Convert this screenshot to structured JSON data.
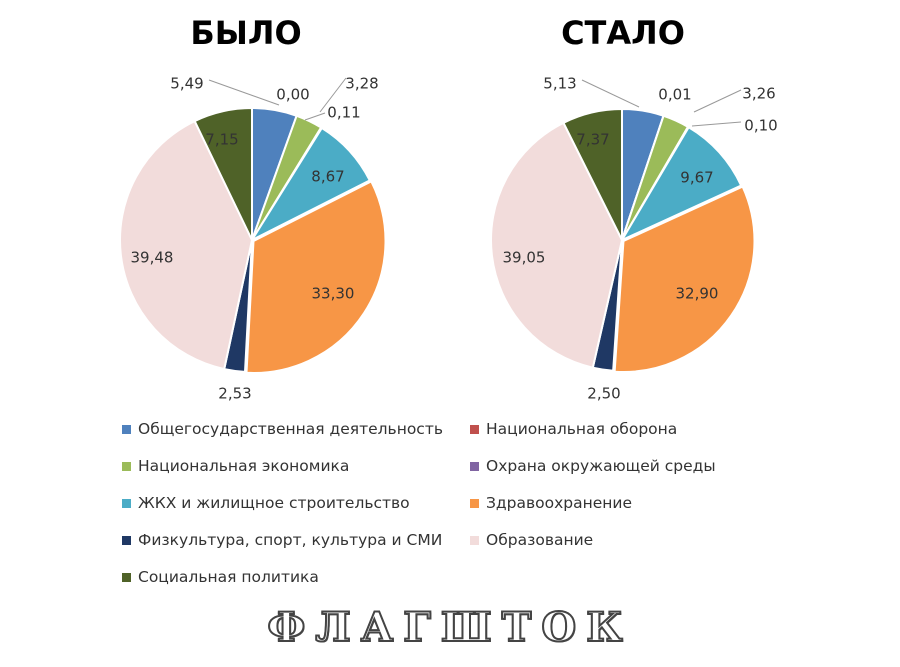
{
  "brand": {
    "text": "ФЛАГШТОК"
  },
  "legend": {
    "items": [
      {
        "label": "Общегосударственная деятельность",
        "color": "#4F81BD"
      },
      {
        "label": "Национальная оборона",
        "color": "#C0504D"
      },
      {
        "label": "Национальная экономика",
        "color": "#9BBB59"
      },
      {
        "label": "Охрана окружающей среды",
        "color": "#8064A2"
      },
      {
        "label": "ЖКХ и жилищное строительство",
        "color": "#4BACC6"
      },
      {
        "label": "Здравоохранение",
        "color": "#F79646"
      },
      {
        "label": "Физкультура, спорт, культура и СМИ",
        "color": "#1F3864"
      },
      {
        "label": "Образование",
        "color": "#F2DCDB"
      },
      {
        "label": "Социальная политика",
        "color": "#4F6228"
      }
    ]
  },
  "chart_data": [
    {
      "type": "pie",
      "title": "БЫЛО",
      "categories": [
        "Общегосударственная деятельность",
        "Национальная оборона",
        "Национальная экономика",
        "Охрана окружающей среды",
        "ЖКХ и жилищное строительство",
        "Здравоохранение",
        "Физкультура, спорт, культура и СМИ",
        "Образование",
        "Социальная политика"
      ],
      "values": [
        5.49,
        0.0,
        3.28,
        0.11,
        8.67,
        33.3,
        2.53,
        39.48,
        7.15
      ],
      "labels": [
        "5,49",
        "0,00",
        "3,28",
        "0,11",
        "8,67",
        "33,30",
        "2,53",
        "39,48",
        "7,15"
      ],
      "legend": "bottom"
    },
    {
      "type": "pie",
      "title": "СТАЛО",
      "categories": [
        "Общегосударственная деятельность",
        "Национальная оборона",
        "Национальная экономика",
        "Охрана окружающей среды",
        "ЖКХ и жилищное строительство",
        "Здравоохранение",
        "Физкультура, спорт, культура и СМИ",
        "Образование",
        "Социальная политика"
      ],
      "values": [
        5.13,
        0.01,
        3.26,
        0.1,
        9.67,
        32.9,
        2.5,
        39.05,
        7.37
      ],
      "labels": [
        "5,13",
        "0,01",
        "3,26",
        "0,10",
        "9,67",
        "32,90",
        "2,50",
        "39,05",
        "7,37"
      ],
      "legend": "bottom"
    }
  ]
}
